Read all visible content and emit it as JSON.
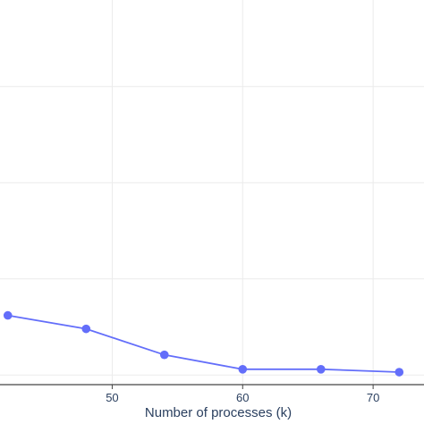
{
  "chart_data": {
    "type": "line",
    "title": "",
    "xlabel": "Number of processes (k)",
    "ylabel": "",
    "x": [
      42,
      48,
      54,
      60,
      66,
      72
    ],
    "series": [
      {
        "values": [
          0.62,
          0.48,
          0.21,
          0.06,
          0.06,
          0.03
        ]
      }
    ],
    "xlim": [
      41.4,
      73.9
    ],
    "ylim": [
      -0.1,
      3.9
    ],
    "x_ticks": [
      50,
      60,
      70
    ],
    "x_tick_labels": [
      "50",
      "60",
      "70"
    ],
    "y_gridlines": [
      0,
      1,
      2,
      3,
      4,
      5
    ],
    "grid": true,
    "line_color": "#636efa",
    "grid_color": "#ebebeb",
    "axis_color": "#444444",
    "text_color": "#2a3f5f"
  }
}
